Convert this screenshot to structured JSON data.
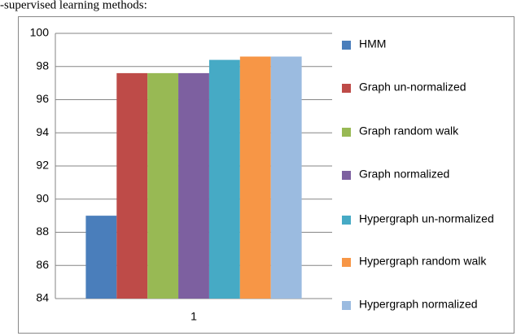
{
  "caption": "-supervised learning methods:",
  "chart_data": {
    "type": "bar",
    "categories": [
      "1"
    ],
    "series": [
      {
        "name": "HMM",
        "color": "#4a7ebb",
        "values": [
          89
        ]
      },
      {
        "name": "Graph un-normalized",
        "color": "#be4b48",
        "values": [
          97.6
        ]
      },
      {
        "name": "Graph random walk",
        "color": "#98b954",
        "values": [
          97.6
        ]
      },
      {
        "name": "Graph normalized",
        "color": "#7d60a0",
        "values": [
          97.6
        ]
      },
      {
        "name": "Hypergraph un-normalized",
        "color": "#46aac5",
        "values": [
          98.4
        ]
      },
      {
        "name": "Hypergraph random walk",
        "color": "#f79646",
        "values": [
          98.6
        ]
      },
      {
        "name": "Hypergraph normalized",
        "color": "#9bbbe0",
        "values": [
          98.6
        ]
      }
    ],
    "ylim": [
      84,
      100
    ],
    "yticks": [
      84,
      86,
      88,
      90,
      92,
      94,
      96,
      98,
      100
    ],
    "grid": true,
    "legend": "right"
  }
}
